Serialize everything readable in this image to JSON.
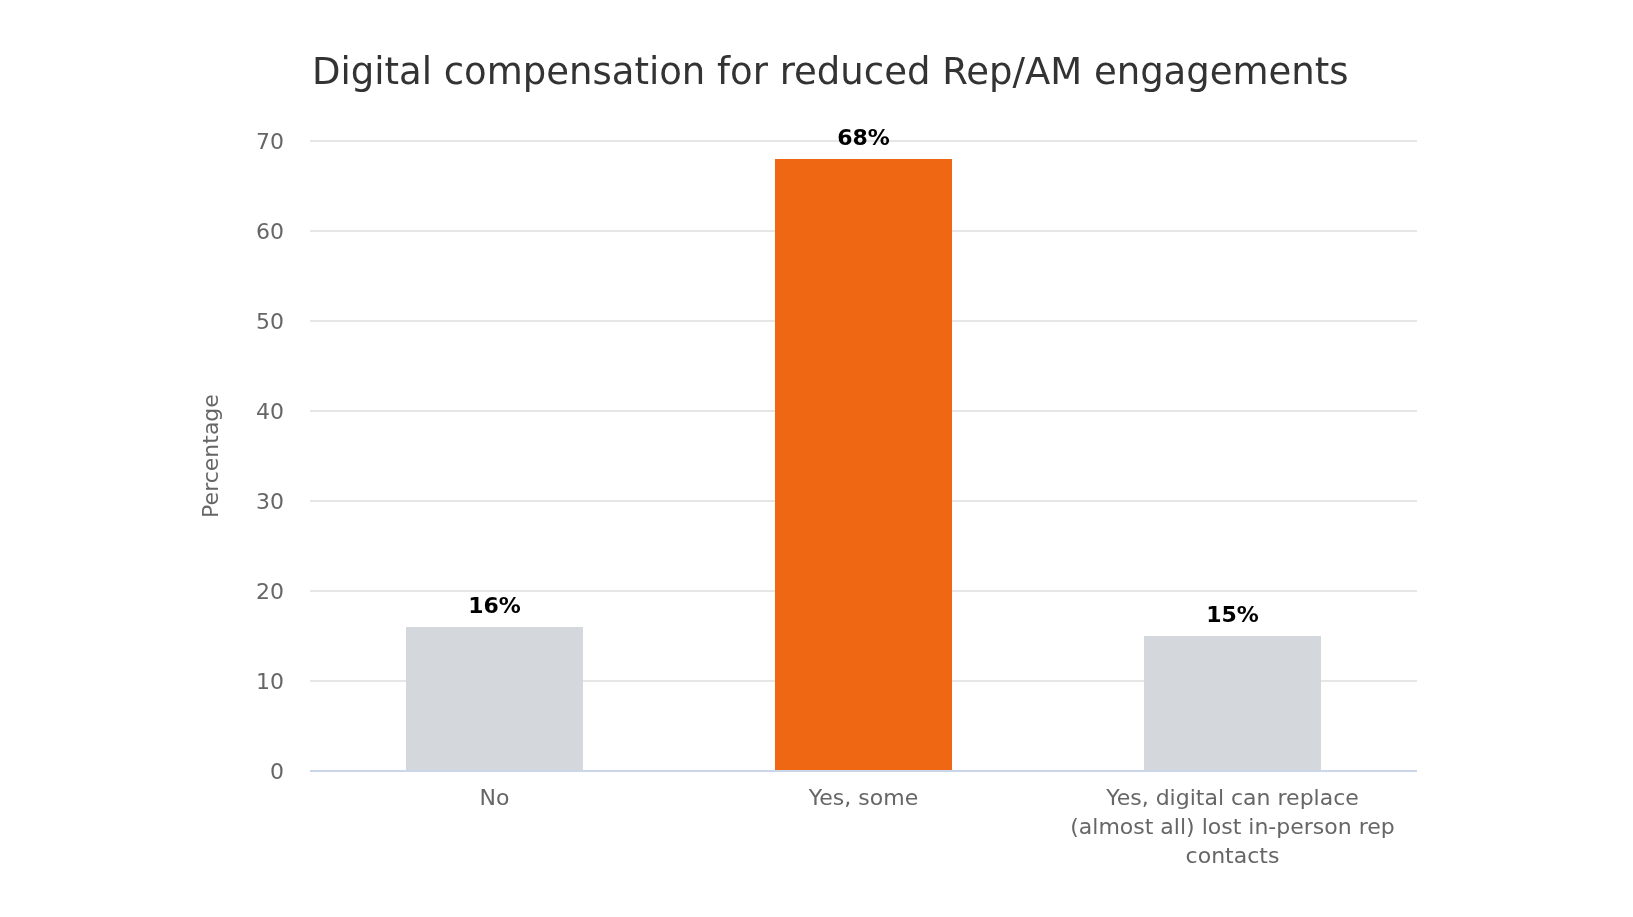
{
  "chart_data": {
    "type": "bar",
    "title": "Digital compensation for reduced Rep/AM engagements",
    "ylabel": "Percentage",
    "categories": [
      "No",
      "Yes, some",
      "Yes, digital can replace (almost all) lost in-person rep contacts"
    ],
    "values": [
      16,
      68,
      15
    ],
    "value_labels": [
      "16%",
      "68%",
      "15%"
    ],
    "colors": [
      "#d4d7db",
      "#ef6712",
      "#d4d7db"
    ],
    "ylim": [
      0,
      70
    ],
    "yticks": [
      0,
      10,
      20,
      30,
      40,
      50,
      60,
      70
    ],
    "grid": "y"
  }
}
